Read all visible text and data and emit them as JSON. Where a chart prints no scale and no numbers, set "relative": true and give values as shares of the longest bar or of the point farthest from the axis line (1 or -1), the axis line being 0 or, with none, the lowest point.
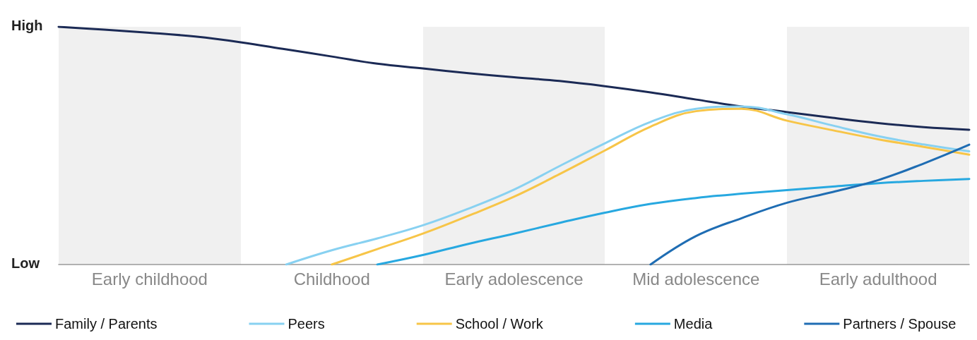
{
  "chart_data": {
    "type": "line",
    "relative": true,
    "categories": [
      null,
      null,
      "Early childhood",
      null,
      null,
      null,
      "Childhood",
      null,
      null,
      null,
      "Early adolescence",
      null,
      null,
      null,
      "Mid adolescence",
      null,
      null,
      null,
      "Early adulthood",
      null,
      null
    ],
    "annotations": [
      "High",
      "Low"
    ],
    "grid": false,
    "legend": "bottom",
    "marker": "none",
    "line_style": "solid",
    "series": [
      {
        "name": "Family / Parents",
        "color": "#1b2a55",
        "values": [
          1,
          0.988,
          0.975,
          0.959,
          0.935,
          0.905,
          0.875,
          0.845,
          0.825,
          0.805,
          0.788,
          0.772,
          0.75,
          0.724,
          0.694,
          0.665,
          0.641,
          0.617,
          0.595,
          0.578,
          0.567
        ]
      },
      {
        "name": "Peers",
        "color": "#88d1f1",
        "values": [
          null,
          null,
          null,
          null,
          null,
          0,
          0.06,
          0.11,
          0.165,
          0.235,
          0.315,
          0.414,
          0.51,
          0.6,
          0.655,
          0.665,
          0.632,
          0.585,
          0.54,
          0.505,
          0.476
        ]
      },
      {
        "name": "School / Work",
        "color": "#f7c548",
        "values": [
          null,
          null,
          null,
          null,
          null,
          null,
          0,
          0.065,
          0.13,
          0.205,
          0.285,
          0.38,
          0.48,
          0.58,
          0.645,
          0.655,
          0.605,
          0.565,
          0.527,
          0.495,
          0.462
        ]
      },
      {
        "name": "Media",
        "color": "#27a8e0",
        "values": [
          null,
          null,
          null,
          null,
          null,
          null,
          null,
          0,
          0.04,
          0.087,
          0.13,
          0.175,
          0.218,
          0.255,
          0.28,
          0.298,
          0.313,
          0.328,
          0.342,
          0.352,
          0.36
        ]
      },
      {
        "name": "Partners / Spouse",
        "color": "#1f6db3",
        "values": [
          null,
          null,
          null,
          null,
          null,
          null,
          null,
          null,
          null,
          null,
          null,
          null,
          null,
          0,
          0.12,
          0.195,
          0.26,
          0.305,
          0.355,
          0.425,
          0.504
        ]
      }
    ]
  }
}
